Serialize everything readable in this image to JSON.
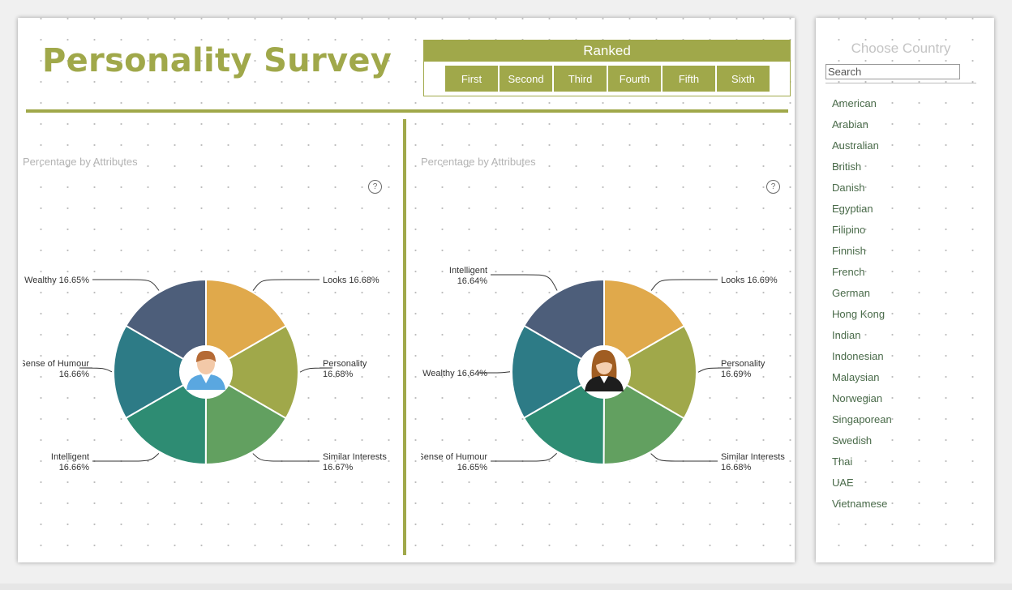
{
  "header": {
    "title": "Personality Survey"
  },
  "ranked": {
    "title": "Ranked",
    "buttons": [
      "First",
      "Second",
      "Third",
      "Fourth",
      "Fifth",
      "Sixth"
    ]
  },
  "colors": {
    "accent": "#a0a84a",
    "slice_looks": "#e0a94b",
    "slice_personality": "#a0a84a",
    "slice_similar_interests": "#62a060",
    "slice_green_teal": "#2e8c73",
    "slice_teal": "#2d7b86",
    "slice_slate": "#4d5e7a"
  },
  "sidebar": {
    "title": "Choose Country",
    "search_placeholder": "Search",
    "countries": [
      "American",
      "Arabian",
      "Australian",
      "British",
      "Danish",
      "Egyptian",
      "Filipino",
      "Finnish",
      "French",
      "German",
      "Hong Kong",
      "Indian",
      "Indonesian",
      "Malaysian",
      "Norwegian",
      "Singaporean",
      "Swedish",
      "Thai",
      "UAE",
      "Vietnamese"
    ]
  },
  "chart_data": [
    {
      "type": "pie",
      "title": "Percentage by Attributes",
      "center_icon": "male-avatar-icon",
      "categories": [
        "Looks",
        "Personality",
        "Similar Interests",
        "Intelligent",
        "Sense of Humour",
        "Wealthy"
      ],
      "values": [
        16.68,
        16.68,
        16.67,
        16.66,
        16.66,
        16.65
      ],
      "labels": [
        "16.68%",
        "16.68%",
        "16.67%",
        "16.66%",
        "16.66%",
        "16.65%"
      ],
      "colors": [
        "#e0a94b",
        "#a0a84a",
        "#62a060",
        "#2e8c73",
        "#2d7b86",
        "#4d5e7a"
      ]
    },
    {
      "type": "pie",
      "title": "Percentage by Attributes",
      "center_icon": "female-avatar-icon",
      "categories": [
        "Looks",
        "Personality",
        "Similar Interests",
        "Sense of Humour",
        "Wealthy",
        "Intelligent"
      ],
      "values": [
        16.69,
        16.69,
        16.68,
        16.65,
        16.64,
        16.64
      ],
      "labels": [
        "16.69%",
        "16.69%",
        "16.68%",
        "16.65%",
        "16.64%",
        "16.64%"
      ],
      "colors": [
        "#e0a94b",
        "#a0a84a",
        "#62a060",
        "#2e8c73",
        "#2d7b86",
        "#4d5e7a"
      ]
    }
  ]
}
